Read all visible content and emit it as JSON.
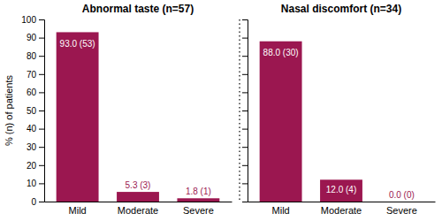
{
  "chart_data": [
    {
      "type": "bar",
      "title": "Abnormal taste (n=57)",
      "y_label": "% (n) of patients",
      "categories": [
        "Mild",
        "Moderate",
        "Severe"
      ],
      "values": [
        93.0,
        5.3,
        1.8
      ],
      "value_labels": [
        "93.0 (53)",
        "5.3 (3)",
        "1.8 (1)"
      ],
      "color": "#9B1750",
      "ylim": [
        0,
        100
      ],
      "yticks": [
        0,
        10,
        20,
        30,
        40,
        50,
        60,
        70,
        80,
        90,
        100
      ],
      "data_labels": true,
      "grid": false
    },
    {
      "type": "bar",
      "title": "Nasal discomfort (n=34)",
      "categories": [
        "Mild",
        "Moderate",
        "Severe"
      ],
      "values": [
        88.0,
        12.0,
        0.0
      ],
      "value_labels": [
        "88.0 (30)",
        "12.0 (4)",
        "0.0 (0)"
      ],
      "color": "#9B1750",
      "ylim": [
        0,
        100
      ],
      "yticks": [
        0,
        10,
        20,
        30,
        40,
        50,
        60,
        70,
        80,
        90,
        100
      ],
      "data_labels": true,
      "grid": false,
      "tick_labels": "x"
    }
  ]
}
